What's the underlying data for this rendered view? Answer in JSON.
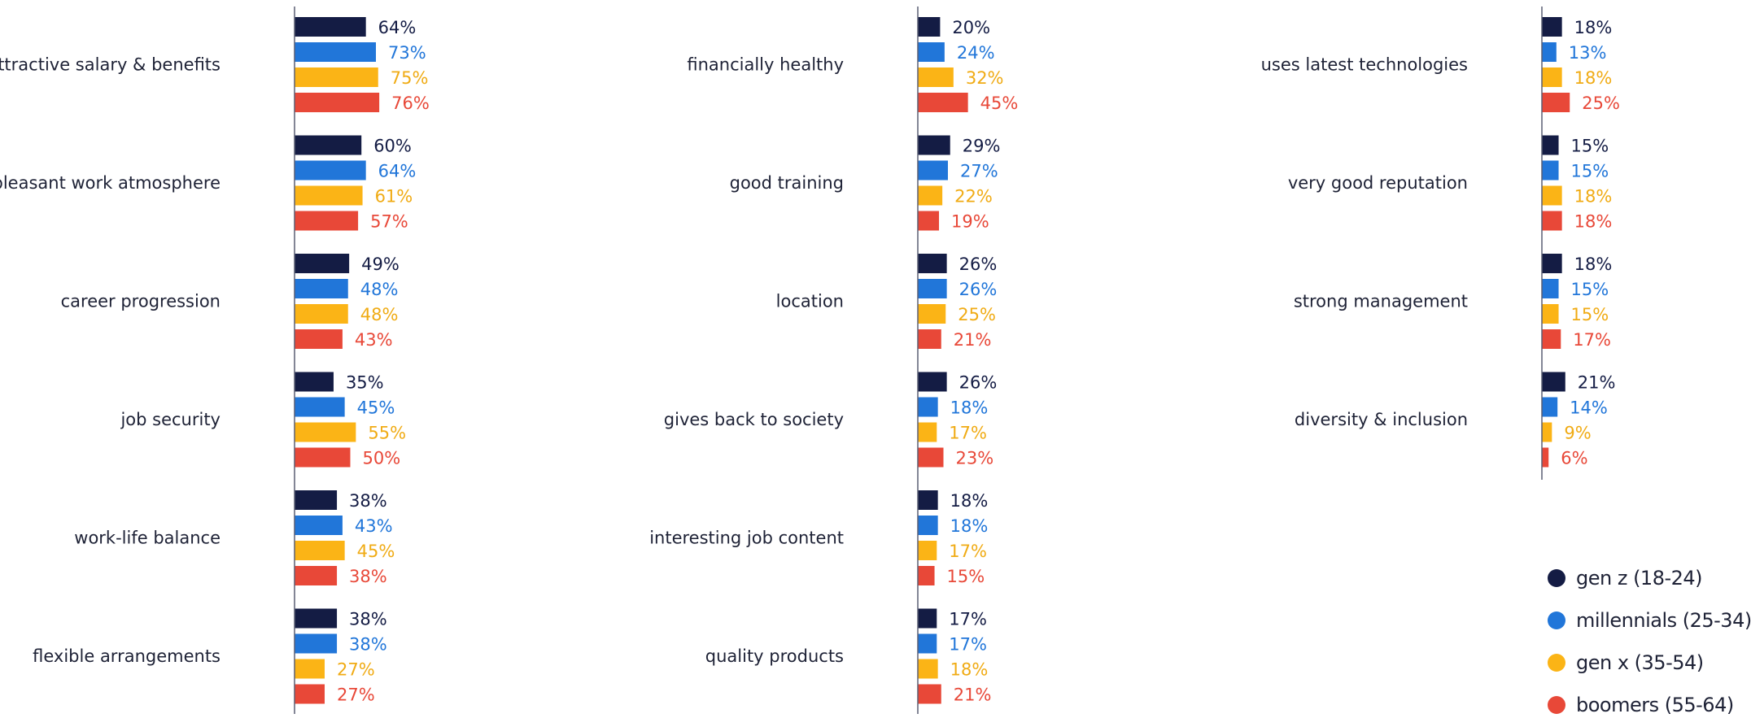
{
  "chart_data": {
    "type": "bar",
    "orientation": "horizontal",
    "value_format": "{v}%",
    "series": [
      {
        "name": "gen z (18-24)",
        "color": "#141c44"
      },
      {
        "name": "millennials (25-34)",
        "color": "#2176d9"
      },
      {
        "name": "gen x (35-54)",
        "color": "#fbb416"
      },
      {
        "name": "boomers (55-64)",
        "color": "#e84838"
      }
    ],
    "panels": [
      {
        "categories": [
          {
            "label": "attractive salary & benefits",
            "values": [
              64,
              73,
              75,
              76
            ]
          },
          {
            "label": "pleasant work atmosphere",
            "values": [
              60,
              64,
              61,
              57
            ]
          },
          {
            "label": "career progression",
            "values": [
              49,
              48,
              48,
              43
            ]
          },
          {
            "label": "job security",
            "values": [
              35,
              45,
              55,
              50
            ]
          },
          {
            "label": "work-life balance",
            "values": [
              38,
              43,
              45,
              38
            ]
          },
          {
            "label": "flexible arrangements",
            "values": [
              38,
              38,
              27,
              27
            ]
          }
        ]
      },
      {
        "categories": [
          {
            "label": "financially healthy",
            "values": [
              20,
              24,
              32,
              45
            ]
          },
          {
            "label": "good training",
            "values": [
              29,
              27,
              22,
              19
            ]
          },
          {
            "label": "location",
            "values": [
              26,
              26,
              25,
              21
            ]
          },
          {
            "label": "gives back to society",
            "values": [
              26,
              18,
              17,
              23
            ]
          },
          {
            "label": "interesting job content",
            "values": [
              18,
              18,
              17,
              15
            ]
          },
          {
            "label": "quality products",
            "values": [
              17,
              17,
              18,
              21
            ]
          }
        ]
      },
      {
        "categories": [
          {
            "label": "uses latest technologies",
            "values": [
              18,
              13,
              18,
              25
            ]
          },
          {
            "label": "very good reputation",
            "values": [
              15,
              15,
              18,
              18
            ]
          },
          {
            "label": "strong management",
            "values": [
              18,
              15,
              15,
              17
            ]
          },
          {
            "label": "diversity & inclusion",
            "values": [
              21,
              14,
              9,
              6
            ]
          }
        ]
      }
    ],
    "legend": {
      "position": "bottom-right"
    },
    "grid": false
  }
}
